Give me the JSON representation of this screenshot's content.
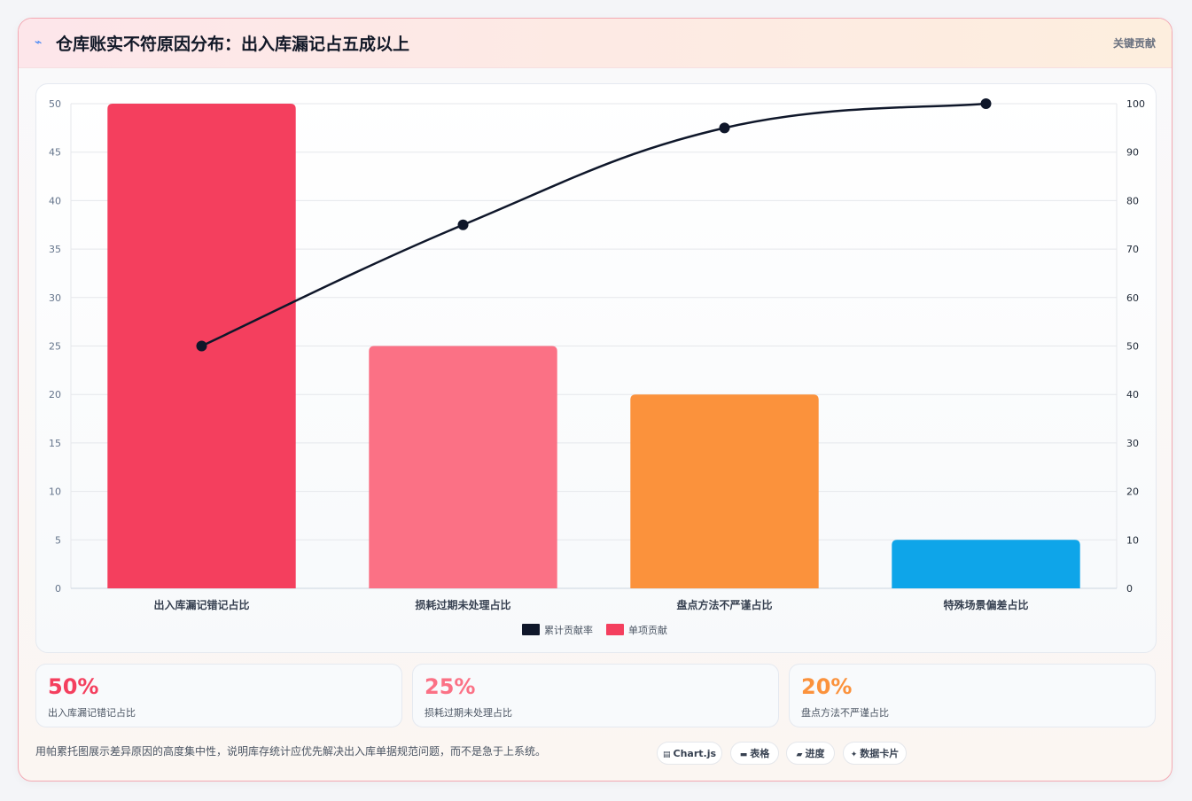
{
  "header": {
    "icon": "lightning-icon",
    "title": "仓库账实不符原因分布：出入库漏记占五成以上",
    "tag": "关键贡献"
  },
  "chart_data": {
    "type": "bar",
    "categories": [
      "出入库漏记错记占比",
      "损耗过期未处理占比",
      "盘点方法不严谨占比",
      "特殊场景偏差占比"
    ],
    "series": [
      {
        "name": "单项贡献",
        "type": "bar",
        "axis": "left",
        "values": [
          50,
          25,
          20,
          5
        ],
        "colors": [
          "#f43f5e",
          "#fb7185",
          "#fb923c",
          "#0ea5e9"
        ]
      },
      {
        "name": "累计贡献率",
        "type": "line",
        "axis": "right",
        "values": [
          50,
          75,
          95,
          100
        ],
        "color": "#0f172a"
      }
    ],
    "ylim": [
      0,
      50
    ],
    "yticks": [
      0,
      5,
      10,
      15,
      20,
      25,
      30,
      35,
      40,
      45,
      50
    ],
    "y2lim": [
      0,
      100
    ],
    "y2ticks": [
      0,
      10,
      20,
      30,
      40,
      50,
      60,
      70,
      80,
      90,
      100
    ],
    "grid": true,
    "legend": "bottom",
    "legend_items": [
      {
        "name": "累计贡献率",
        "color": "#0f172a"
      },
      {
        "name": "单项贡献",
        "color": "#f43f5e"
      }
    ]
  },
  "stats": [
    {
      "value": "50%",
      "label": "出入库漏记错记占比",
      "color": "#f43f5e"
    },
    {
      "value": "25%",
      "label": "损耗过期未处理占比",
      "color": "#fb7185"
    },
    {
      "value": "20%",
      "label": "盘点方法不严谨占比",
      "color": "#fb923c"
    }
  ],
  "footer": {
    "note": "用帕累托图展示差异原因的高度集中性，说明库存统计应优先解决出入库单据规范问题，而不是急于上系统。",
    "chips": [
      {
        "label": "Chart.js",
        "icon": "chart-icon"
      },
      {
        "label": "表格",
        "icon": "table-icon"
      },
      {
        "label": "进度",
        "icon": "progress-icon"
      },
      {
        "label": "数据卡片",
        "icon": "sparkle-icon"
      }
    ]
  }
}
